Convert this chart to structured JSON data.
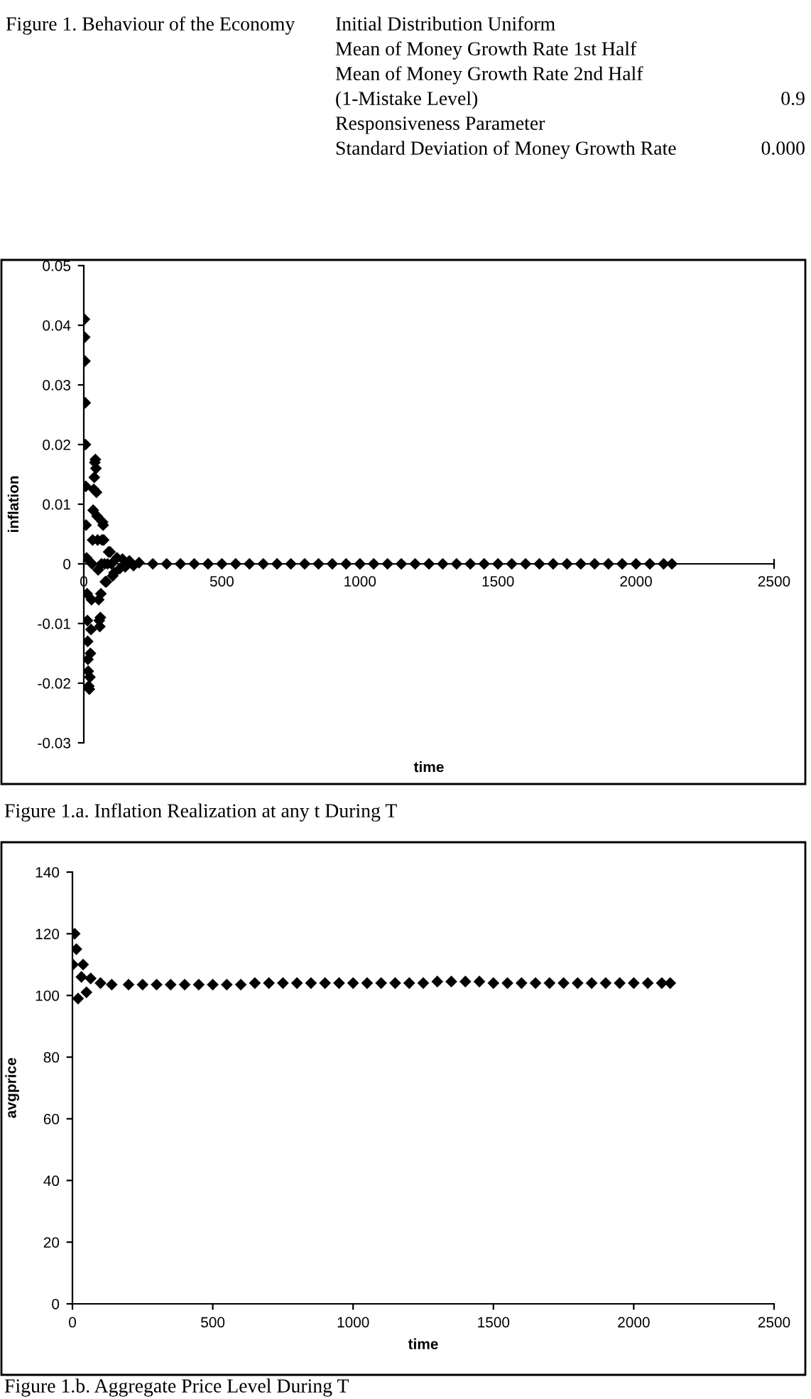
{
  "chart_data": [
    {
      "type": "other",
      "title": "Figure 1. Behaviour of the Economy",
      "annotations": [
        "Initial Distribution Uniform",
        "Mean of Money Growth Rate 1st Half",
        "Mean of Money Growth Rate 2nd Half",
        "(1-Mistake Level)",
        "Responsiveness Parameter",
        "Standard Deviation of Money Growth Rate",
        "0.9",
        "0.000"
      ]
    },
    {
      "type": "scatter",
      "xlabel": "time",
      "ylabel": "inflation",
      "marker": "diamond",
      "grid": false,
      "xlim": [
        0,
        2500
      ],
      "xticks": [
        0,
        500,
        1000,
        1500,
        2000,
        2500
      ],
      "ylim": [
        -0.03,
        0.05
      ],
      "yticks": [
        -0.03,
        -0.02,
        -0.01,
        0,
        0.01,
        0.02,
        0.03,
        0.04,
        0.05
      ],
      "annotations": [
        "Figure 1.a. Inflation Realization at any t During T"
      ],
      "series": [
        {
          "color": "#000000",
          "x": [
            2,
            3,
            4,
            5,
            6,
            7,
            8,
            10,
            12,
            13,
            14,
            15,
            16,
            18,
            20,
            22,
            24,
            26,
            28,
            30,
            32,
            34,
            36,
            38,
            40,
            42,
            44,
            46,
            48,
            50,
            52,
            54,
            56,
            58,
            60,
            62,
            64,
            66,
            68,
            70,
            72,
            75,
            78,
            82,
            86,
            90,
            95,
            100,
            105,
            110,
            120,
            130,
            140,
            150,
            165,
            180,
            200,
            250,
            300,
            350,
            400,
            450,
            500,
            550,
            600,
            650,
            700,
            750,
            800,
            850,
            900,
            950,
            1000,
            1050,
            1100,
            1150,
            1200,
            1250,
            1300,
            1350,
            1400,
            1450,
            1500,
            1550,
            1600,
            1650,
            1700,
            1750,
            1800,
            1850,
            1900,
            1950,
            2000,
            2050,
            2100,
            2130
          ],
          "values": [
            0.041,
            0.038,
            0.034,
            0.027,
            0.02,
            0.013,
            0.0065,
            0.001,
            -0.005,
            -0.0095,
            -0.013,
            -0.016,
            -0.018,
            -0.0205,
            -0.021,
            -0.019,
            -0.015,
            -0.011,
            -0.006,
            0,
            0.004,
            0.009,
            0.0125,
            0.0145,
            0.017,
            0.0175,
            0.016,
            0.012,
            0.008,
            0.004,
            -0.001,
            -0.006,
            -0.0095,
            -0.0105,
            -0.009,
            -0.005,
            0,
            0.004,
            0.007,
            0.0065,
            0.004,
            0,
            -0.003,
            -0.003,
            0,
            0.002,
            0.002,
            0,
            -0.002,
            -0.0015,
            0.001,
            -0.0008,
            0.0008,
            -0.0005,
            0.0005,
            -0.0003,
            0.0002,
            0,
            0,
            0,
            0,
            0,
            0,
            0,
            0,
            0,
            0,
            0,
            0,
            0,
            0,
            0,
            0,
            0,
            0,
            0,
            0,
            0,
            0,
            0,
            0,
            0,
            0,
            0,
            0,
            0,
            0,
            0,
            0,
            0,
            0,
            0,
            0,
            0,
            0,
            0
          ]
        }
      ]
    },
    {
      "type": "scatter",
      "xlabel": "time",
      "ylabel": "avgprice",
      "marker": "diamond",
      "grid": false,
      "xlim": [
        0,
        2500
      ],
      "xticks": [
        0,
        500,
        1000,
        1500,
        2000,
        2500
      ],
      "ylim": [
        0,
        140
      ],
      "yticks": [
        0,
        20,
        40,
        60,
        80,
        100,
        120,
        140
      ],
      "annotations": [
        "Figure 1.b. Aggregate Price Level During T"
      ],
      "series": [
        {
          "color": "#000000",
          "x": [
            2,
            8,
            14,
            20,
            32,
            38,
            50,
            65,
            100,
            140,
            200,
            250,
            300,
            350,
            400,
            450,
            500,
            550,
            600,
            650,
            700,
            750,
            800,
            850,
            900,
            950,
            1000,
            1050,
            1100,
            1150,
            1200,
            1250,
            1300,
            1350,
            1400,
            1450,
            1500,
            1550,
            1600,
            1650,
            1700,
            1750,
            1800,
            1850,
            1900,
            1950,
            2000,
            2050,
            2100,
            2130
          ],
          "values": [
            110,
            120,
            115,
            99,
            106,
            110,
            101,
            105.5,
            104,
            103.5,
            103.5,
            103.5,
            103.5,
            103.5,
            103.5,
            103.5,
            103.5,
            103.5,
            103.5,
            104,
            104,
            104,
            104,
            104,
            104,
            104,
            104,
            104,
            104,
            104,
            104,
            104,
            104.5,
            104.5,
            104.5,
            104.5,
            104,
            104,
            104,
            104,
            104,
            104,
            104,
            104,
            104,
            104,
            104,
            104,
            104,
            104
          ]
        }
      ]
    }
  ]
}
